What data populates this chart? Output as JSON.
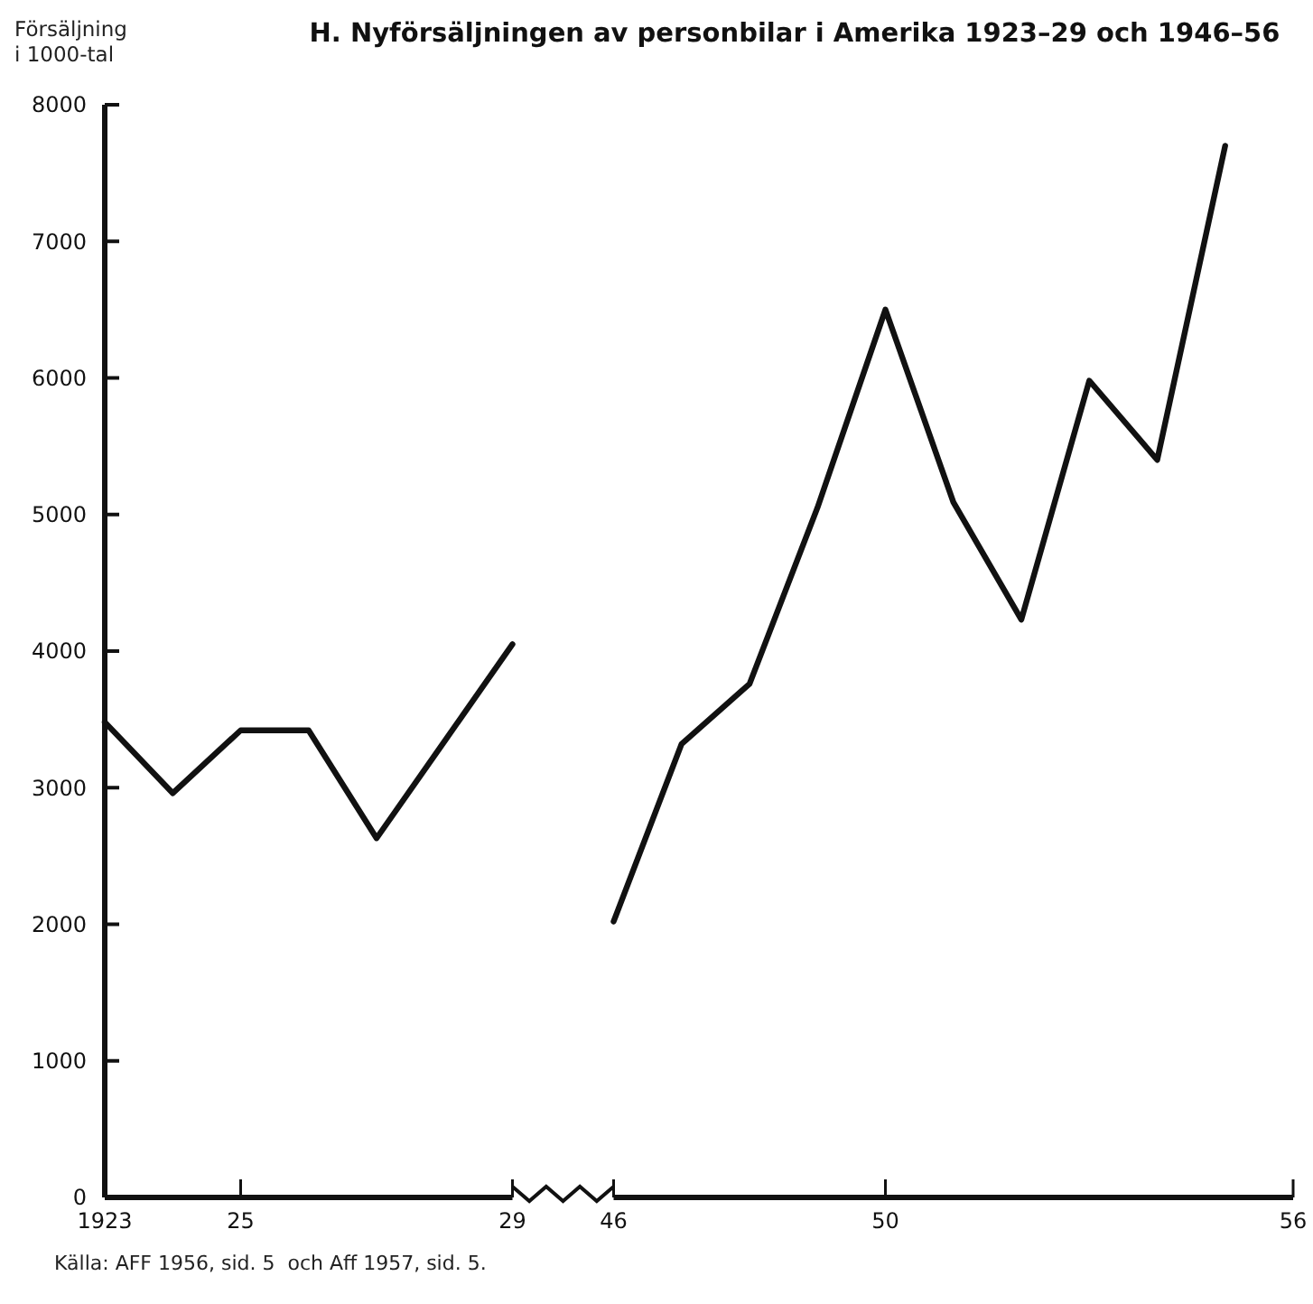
{
  "chart_data": [
    {
      "type": "line",
      "title": "H. Nyförsäljningen av personbilar i Amerika 1923–29 och 1946–56",
      "ylabel": "Försäljning\ni 1000-tal",
      "annotations": [
        "Källa: AFF 1956, sid. 5  och Aff 1957, sid. 5."
      ],
      "xlim": [
        1923,
        1929
      ],
      "xticks": [
        {
          "value": 1923,
          "label": "1923"
        },
        {
          "value": 1925,
          "label": "25"
        },
        {
          "value": 1929,
          "label": "29"
        }
      ],
      "ylim": [
        0,
        8000
      ],
      "yticks": [
        0,
        1000,
        2000,
        3000,
        4000,
        5000,
        6000,
        7000,
        8000
      ],
      "line_style": "solid",
      "series": [
        {
          "color": "#111111",
          "x": [
            1923,
            1924,
            1925,
            1926,
            1927,
            1928,
            1929
          ],
          "values": [
            3480,
            2960,
            3420,
            3420,
            2630,
            3340,
            4050
          ]
        }
      ]
    },
    {
      "type": "line",
      "xlim": [
        1946,
        1956
      ],
      "xticks": [
        {
          "value": 1946,
          "label": "46"
        },
        {
          "value": 1950,
          "label": "50"
        },
        {
          "value": 1956,
          "label": "56"
        }
      ],
      "ylim": [
        0,
        8000
      ],
      "tick_labels": "x",
      "line_style": "solid",
      "series": [
        {
          "color": "#111111",
          "x": [
            1946,
            1947,
            1948,
            1949,
            1950,
            1951,
            1952,
            1953,
            1954,
            1955
          ],
          "values": [
            2020,
            3320,
            3760,
            5050,
            6500,
            5090,
            4230,
            5980,
            5400,
            7700
          ]
        }
      ]
    }
  ]
}
